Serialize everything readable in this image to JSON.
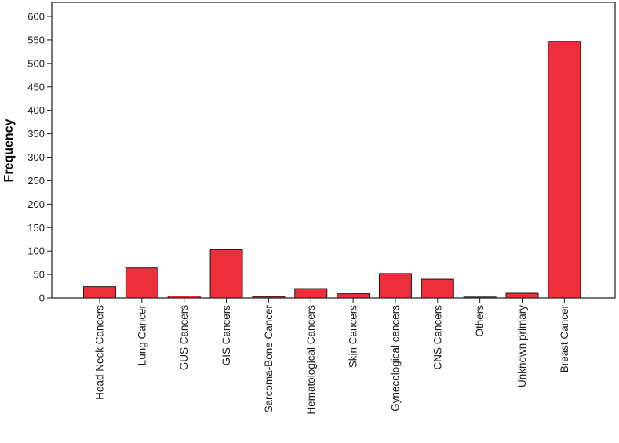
{
  "chart_data": {
    "type": "bar",
    "title": "",
    "xlabel": "",
    "ylabel": "Frequency",
    "ylim": [
      0,
      600
    ],
    "yticks": [
      0,
      50,
      100,
      150,
      200,
      250,
      300,
      350,
      400,
      450,
      500,
      550,
      600
    ],
    "grid": false,
    "legend": "none",
    "categories": [
      "Head Neck Cancers",
      "Lung Cancer",
      "GUS Cancers",
      "GIS Cancers",
      "Sarcoma-Bone Cancer",
      "Hematological Cancers",
      "Skin Cancers",
      "Gynecological cancers",
      "CNS Cancers",
      "Others",
      "Unknown primary",
      "Breast Cancer"
    ],
    "values": [
      24,
      64,
      4,
      103,
      3,
      20,
      9,
      52,
      40,
      2,
      10,
      547
    ],
    "colors": {
      "bar_fill": "#ee2e3b",
      "bar_stroke": "#1a1a1a",
      "axis": "#1a1a1a"
    }
  }
}
